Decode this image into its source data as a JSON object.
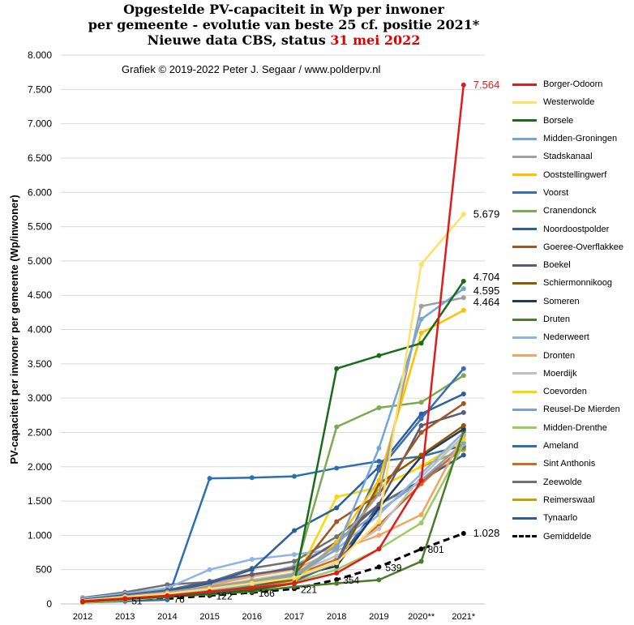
{
  "header": {
    "title_line1": "Opgestelde PV-capaciteit in Wp per inwoner",
    "title_line2": "per gemeente - evolutie van beste 25 cf. positie 2021*",
    "title_line3_prefix": "Nieuwe data CBS, status ",
    "title_line3_date": "31 mei 2022",
    "credit": "Grafiek © 2019-2022 Peter J. Segaar / www.polderpv.nl"
  },
  "chart_data": {
    "type": "line",
    "title": "Opgestelde PV-capaciteit in Wp per inwoner per gemeente - evolutie van beste 25 cf. positie 2021* Nieuwe data CBS, status 31 mei 2022",
    "ylabel": "PV-capaciteit per inwoner per gemeente (Wp/inwoner)",
    "xlabel": "",
    "categories": [
      "2012",
      "2013",
      "2014",
      "2015",
      "2016",
      "2017",
      "2018",
      "2019",
      "2020**",
      "2021*"
    ],
    "ylim": [
      0,
      8000
    ],
    "yticks": [
      0,
      500,
      1000,
      1500,
      2000,
      2500,
      3000,
      3500,
      4000,
      4500,
      5000,
      5500,
      6000,
      6500,
      7000,
      7500,
      8000
    ],
    "ytick_labels": [
      "0",
      "500",
      "1.000",
      "1.500",
      "2.000",
      "2.500",
      "3.000",
      "3.500",
      "4.000",
      "4.500",
      "5.000",
      "5.500",
      "6.000",
      "6.500",
      "7.000",
      "7.500",
      "8.000"
    ],
    "grid": "horizontal",
    "legend": "right",
    "series": [
      {
        "name": "Borger-Odoorn",
        "color": "#e31a1c",
        "values": [
          40,
          80,
          120,
          180,
          230,
          300,
          450,
          800,
          1800,
          7564
        ]
      },
      {
        "name": "Westerwolde",
        "color": "#ffe066",
        "values": [
          50,
          100,
          150,
          220,
          300,
          380,
          600,
          1200,
          4950,
          5679
        ]
      },
      {
        "name": "Borsele",
        "color": "#1a6b1a",
        "values": [
          30,
          70,
          110,
          150,
          200,
          300,
          3430,
          3620,
          3800,
          4704
        ]
      },
      {
        "name": "Midden-Groningen",
        "color": "#6fa8dc",
        "values": [
          40,
          90,
          140,
          200,
          280,
          400,
          800,
          2270,
          4150,
          4595
        ]
      },
      {
        "name": "Stadskanaal",
        "color": "#a0a0a0",
        "values": [
          50,
          110,
          170,
          250,
          320,
          420,
          850,
          1600,
          4340,
          4464
        ]
      },
      {
        "name": "Ooststellingwerf",
        "color": "#ffc000",
        "values": [
          20,
          60,
          110,
          160,
          220,
          320,
          900,
          1800,
          3950,
          4280
        ]
      },
      {
        "name": "Voorst",
        "color": "#3d6db5",
        "values": [
          40,
          80,
          120,
          170,
          230,
          330,
          600,
          1950,
          2700,
          3430
        ]
      },
      {
        "name": "Cranendonck",
        "color": "#7bab4f",
        "values": [
          50,
          110,
          170,
          250,
          330,
          430,
          2580,
          2860,
          2940,
          3330
        ]
      },
      {
        "name": "Noordoostpolder",
        "color": "#2c5f9e",
        "values": [
          60,
          120,
          180,
          300,
          500,
          1070,
          1400,
          2000,
          2770,
          3060
        ]
      },
      {
        "name": "Goeree-Overflakkee",
        "color": "#a0561e",
        "values": [
          40,
          90,
          150,
          220,
          300,
          420,
          1200,
          1600,
          2500,
          2920
        ]
      },
      {
        "name": "Boekel",
        "color": "#5c5c7a",
        "values": [
          60,
          130,
          200,
          330,
          430,
          520,
          900,
          1450,
          2600,
          2790
        ]
      },
      {
        "name": "Schiermonnikoog",
        "color": "#8b5a00",
        "values": [
          30,
          80,
          130,
          190,
          260,
          360,
          600,
          1750,
          2170,
          2600
        ]
      },
      {
        "name": "Someren",
        "color": "#1f3864",
        "values": [
          50,
          110,
          160,
          230,
          310,
          400,
          550,
          1400,
          2150,
          2550
        ]
      },
      {
        "name": "Druten",
        "color": "#4a7c2a",
        "values": [
          30,
          70,
          100,
          140,
          180,
          250,
          300,
          350,
          620,
          2520
        ]
      },
      {
        "name": "Nederweert",
        "color": "#8eb4e3",
        "values": [
          80,
          150,
          230,
          500,
          650,
          720,
          800,
          1300,
          1900,
          2500
        ]
      },
      {
        "name": "Dronten",
        "color": "#f4a460",
        "values": [
          30,
          90,
          160,
          270,
          400,
          500,
          780,
          1000,
          1300,
          2470
        ]
      },
      {
        "name": "Moerdijk",
        "color": "#c0c0c0",
        "values": [
          40,
          100,
          160,
          250,
          350,
          450,
          700,
          1100,
          1850,
          2450
        ]
      },
      {
        "name": "Coevorden",
        "color": "#ffd700",
        "values": [
          20,
          60,
          100,
          160,
          230,
          320,
          1560,
          1700,
          2000,
          2400
        ]
      },
      {
        "name": "Reusel-De Mierden",
        "color": "#7fa0c8",
        "values": [
          60,
          130,
          200,
          300,
          400,
          550,
          900,
          1350,
          1800,
          2350
        ]
      },
      {
        "name": "Midden-Drenthe",
        "color": "#9acd60",
        "values": [
          30,
          70,
          110,
          170,
          230,
          320,
          500,
          800,
          1180,
          2330
        ]
      },
      {
        "name": "Ameland",
        "color": "#2e6fb0",
        "values": [
          20,
          40,
          60,
          1830,
          1840,
          1860,
          1980,
          2080,
          2150,
          2310
        ]
      },
      {
        "name": "Sint Anthonis",
        "color": "#d2691e",
        "values": [
          40,
          100,
          160,
          240,
          320,
          420,
          650,
          1150,
          1750,
          2300
        ]
      },
      {
        "name": "Zeewolde",
        "color": "#707070",
        "values": [
          90,
          170,
          280,
          320,
          520,
          620,
          980,
          1450,
          1780,
          2280
        ]
      },
      {
        "name": "Reimerswaal",
        "color": "#c8a000",
        "values": [
          30,
          80,
          130,
          200,
          270,
          380,
          600,
          1700,
          2000,
          2250
        ]
      },
      {
        "name": "Tynaarlo",
        "color": "#2e5d9a",
        "values": [
          40,
          90,
          140,
          210,
          290,
          380,
          600,
          1450,
          1800,
          2170
        ]
      },
      {
        "name": "Gemiddelde",
        "color": "#000000",
        "dashed": true,
        "values": [
          null,
          51,
          76,
          122,
          166,
          221,
          354,
          539,
          801,
          1028
        ]
      }
    ],
    "end_labels": [
      {
        "series": "Borger-Odoorn",
        "text": "7.564",
        "color": "#e31a1c"
      },
      {
        "series": "Westerwolde",
        "text": "5.679"
      },
      {
        "series": "Borsele",
        "text": "4.704"
      },
      {
        "series": "Midden-Groningen",
        "text": "4.595"
      },
      {
        "series": "Stadskanaal",
        "text": "4.464"
      },
      {
        "series": "Gemiddelde",
        "text": "1.028"
      }
    ],
    "average_labels": [
      {
        "index": 1,
        "text": "51"
      },
      {
        "index": 2,
        "text": "76"
      },
      {
        "index": 3,
        "text": "122"
      },
      {
        "index": 4,
        "text": "166"
      },
      {
        "index": 5,
        "text": "221"
      },
      {
        "index": 6,
        "text": "354"
      },
      {
        "index": 7,
        "text": "539"
      },
      {
        "index": 8,
        "text": "801"
      }
    ]
  }
}
